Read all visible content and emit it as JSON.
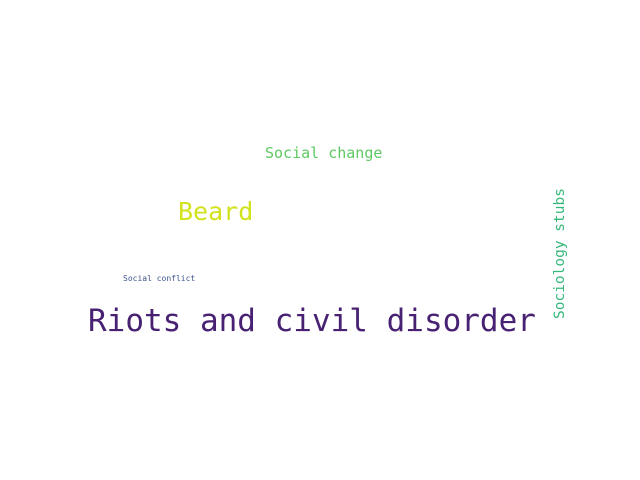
{
  "wordcloud": {
    "words": {
      "social_change": {
        "text": "Social change",
        "color": "#5ec962"
      },
      "beard": {
        "text": "Beard",
        "color": "#d2e21b"
      },
      "social_conflict": {
        "text": "Social conflict",
        "color": "#3b528b"
      },
      "riots": {
        "text": "Riots and civil disorder",
        "color": "#482173"
      },
      "sociology_stubs": {
        "text": "Sociology stubs",
        "color": "#35b779"
      }
    }
  }
}
